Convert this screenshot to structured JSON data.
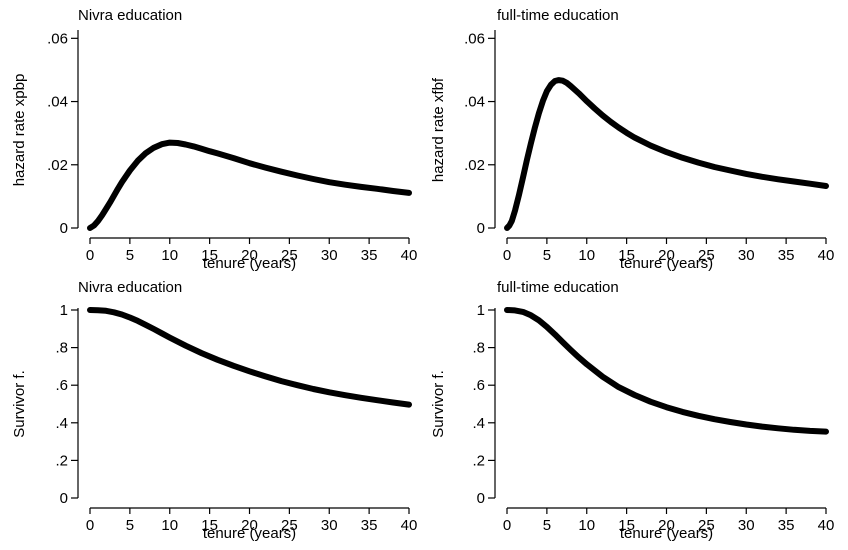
{
  "chart_data": [
    {
      "type": "line",
      "title": "Nivra education",
      "xlabel": "tenure  (years)",
      "ylabel": "hazard rate xpbp",
      "xlim": [
        0,
        40
      ],
      "ylim": [
        0,
        0.062
      ],
      "xticks": [
        0,
        5,
        10,
        15,
        20,
        25,
        30,
        35,
        40
      ],
      "xtick_labels": [
        "0",
        "5",
        "10",
        "15",
        "20",
        "25",
        "30",
        "35",
        "40"
      ],
      "yticks": [
        0,
        0.02,
        0.04,
        0.06
      ],
      "ytick_labels": [
        "0",
        ".02",
        ".04",
        ".06"
      ],
      "grid": false,
      "series": [
        {
          "x": [
            0,
            0.5,
            1,
            1.5,
            2,
            2.5,
            3,
            3.5,
            4,
            5,
            6,
            7,
            8,
            9,
            10,
            11,
            12,
            13,
            14,
            15,
            16,
            18,
            20,
            22,
            24,
            26,
            28,
            30,
            32,
            34,
            36,
            38,
            40
          ],
          "y": [
            0,
            0.0008,
            0.0022,
            0.004,
            0.006,
            0.008,
            0.0102,
            0.0124,
            0.0145,
            0.0182,
            0.0213,
            0.0237,
            0.0254,
            0.0265,
            0.027,
            0.0269,
            0.0264,
            0.0258,
            0.0251,
            0.0243,
            0.0236,
            0.0221,
            0.0205,
            0.0191,
            0.0178,
            0.0166,
            0.0155,
            0.0145,
            0.0137,
            0.013,
            0.0124,
            0.0117,
            0.0111
          ]
        }
      ]
    },
    {
      "type": "line",
      "title": "full-time education",
      "xlabel": "tenure  (years)",
      "ylabel": "hazard rate xfbf",
      "xlim": [
        0,
        40
      ],
      "ylim": [
        0,
        0.062
      ],
      "xticks": [
        0,
        5,
        10,
        15,
        20,
        25,
        30,
        35,
        40
      ],
      "xtick_labels": [
        "0",
        "5",
        "10",
        "15",
        "20",
        "25",
        "30",
        "35",
        "40"
      ],
      "yticks": [
        0,
        0.02,
        0.04,
        0.06
      ],
      "ytick_labels": [
        "0",
        ".02",
        ".04",
        ".06"
      ],
      "grid": false,
      "series": [
        {
          "x": [
            0,
            0.3,
            0.6,
            1,
            1.5,
            2,
            2.5,
            3,
            3.5,
            4,
            4.5,
            5,
            5.5,
            6,
            6.5,
            7,
            7.5,
            8,
            9,
            10,
            11,
            12,
            13,
            14,
            15,
            16,
            18,
            20,
            22,
            24,
            26,
            28,
            30,
            32,
            34,
            36,
            38,
            40
          ],
          "y": [
            0,
            0.0008,
            0.0022,
            0.0055,
            0.0105,
            0.016,
            0.0215,
            0.0268,
            0.0318,
            0.0363,
            0.0402,
            0.0433,
            0.0453,
            0.0465,
            0.0468,
            0.0466,
            0.0459,
            0.0449,
            0.0426,
            0.0401,
            0.0378,
            0.0356,
            0.0336,
            0.0318,
            0.0301,
            0.0286,
            0.0261,
            0.024,
            0.0222,
            0.0207,
            0.0193,
            0.0182,
            0.0171,
            0.0162,
            0.0154,
            0.0147,
            0.014,
            0.0133
          ]
        }
      ]
    },
    {
      "type": "line",
      "title": "Nivra education",
      "xlabel": "tenure  (years)",
      "ylabel": "Survivor f.",
      "xlim": [
        0,
        40
      ],
      "ylim": [
        0,
        1
      ],
      "xticks": [
        0,
        5,
        10,
        15,
        20,
        25,
        30,
        35,
        40
      ],
      "xtick_labels": [
        "0",
        "5",
        "10",
        "15",
        "20",
        "25",
        "30",
        "35",
        "40"
      ],
      "yticks": [
        0,
        0.2,
        0.4,
        0.6,
        0.8,
        1
      ],
      "ytick_labels": [
        "0",
        ".2",
        ".4",
        ".6",
        ".8",
        "1"
      ],
      "grid": false,
      "series": [
        {
          "x": [
            0,
            1,
            2,
            3,
            4,
            5,
            6,
            7,
            8,
            9,
            10,
            12,
            14,
            16,
            18,
            20,
            22,
            24,
            26,
            28,
            30,
            32,
            34,
            36,
            38,
            40
          ],
          "y": [
            1,
            0.999,
            0.996,
            0.988,
            0.976,
            0.96,
            0.942,
            0.921,
            0.899,
            0.876,
            0.853,
            0.81,
            0.771,
            0.735,
            0.703,
            0.674,
            0.647,
            0.622,
            0.6,
            0.58,
            0.562,
            0.547,
            0.533,
            0.52,
            0.508,
            0.497
          ]
        }
      ]
    },
    {
      "type": "line",
      "title": "full-time education",
      "xlabel": "tenure  (years)",
      "ylabel": "Survivor f.",
      "xlim": [
        0,
        40
      ],
      "ylim": [
        0,
        1
      ],
      "xticks": [
        0,
        5,
        10,
        15,
        20,
        25,
        30,
        35,
        40
      ],
      "xtick_labels": [
        "0",
        "5",
        "10",
        "15",
        "20",
        "25",
        "30",
        "35",
        "40"
      ],
      "yticks": [
        0,
        0.2,
        0.4,
        0.6,
        0.8,
        1
      ],
      "ytick_labels": [
        "0",
        ".2",
        ".4",
        ".6",
        ".8",
        "1"
      ],
      "grid": false,
      "series": [
        {
          "x": [
            0,
            1,
            2,
            3,
            4,
            5,
            6,
            7,
            8,
            9,
            10,
            12,
            14,
            16,
            18,
            20,
            22,
            24,
            26,
            28,
            30,
            32,
            34,
            36,
            38,
            40
          ],
          "y": [
            1,
            0.998,
            0.99,
            0.972,
            0.945,
            0.91,
            0.87,
            0.828,
            0.787,
            0.748,
            0.711,
            0.645,
            0.59,
            0.548,
            0.512,
            0.483,
            0.458,
            0.437,
            0.419,
            0.404,
            0.391,
            0.38,
            0.371,
            0.363,
            0.357,
            0.353
          ]
        }
      ]
    }
  ]
}
